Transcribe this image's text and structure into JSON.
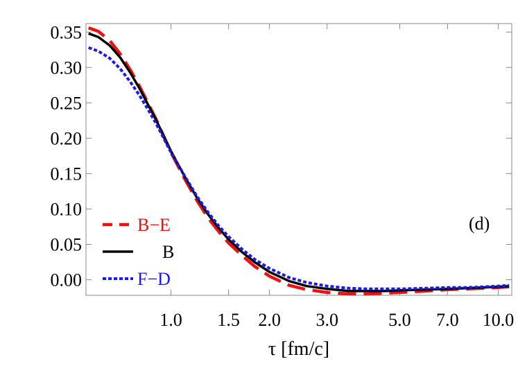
{
  "chart_data": {
    "type": "line",
    "title": "",
    "xlabel": "τ [fm/c]",
    "ylabel": "",
    "x_scale": "log",
    "xlim": [
      0.55,
      11.0
    ],
    "ylim": [
      -0.022,
      0.362
    ],
    "x_ticks": [
      {
        "value": 1.0,
        "label": "1.0"
      },
      {
        "value": 1.5,
        "label": "1.5"
      },
      {
        "value": 2.0,
        "label": "2.0"
      },
      {
        "value": 3.0,
        "label": "3.0"
      },
      {
        "value": 5.0,
        "label": "5.0"
      },
      {
        "value": 7.0,
        "label": "7.0"
      },
      {
        "value": 10.0,
        "label": "10.0"
      }
    ],
    "y_ticks": [
      {
        "value": 0.0,
        "label": "0.00"
      },
      {
        "value": 0.05,
        "label": "0.05"
      },
      {
        "value": 0.1,
        "label": "0.10"
      },
      {
        "value": 0.15,
        "label": "0.15"
      },
      {
        "value": 0.2,
        "label": "0.20"
      },
      {
        "value": 0.25,
        "label": "0.25"
      },
      {
        "value": 0.3,
        "label": "0.30"
      },
      {
        "value": 0.35,
        "label": "0.35"
      }
    ],
    "grid": false,
    "legend_position": "bottom-left",
    "annotation": "(d)",
    "series": [
      {
        "name": "B−E",
        "color": "#ee1111",
        "style": "dashed",
        "x": [
          0.56,
          0.6,
          0.65,
          0.7,
          0.75,
          0.8,
          0.85,
          0.9,
          1.0,
          1.1,
          1.2,
          1.3,
          1.4,
          1.5,
          1.65,
          1.8,
          2.0,
          2.3,
          2.6,
          3.0,
          3.5,
          4.0,
          4.5,
          5.0,
          6.0,
          7.0,
          8.0,
          9.0,
          10.0,
          10.8
        ],
        "values": [
          0.356,
          0.351,
          0.338,
          0.319,
          0.297,
          0.274,
          0.25,
          0.227,
          0.18,
          0.143,
          0.112,
          0.087,
          0.068,
          0.052,
          0.034,
          0.019,
          0.005,
          -0.008,
          -0.014,
          -0.018,
          -0.02,
          -0.02,
          -0.019,
          -0.018,
          -0.016,
          -0.014,
          -0.013,
          -0.012,
          -0.011,
          -0.01
        ]
      },
      {
        "name": "B",
        "color": "#000000",
        "style": "solid",
        "x": [
          0.56,
          0.6,
          0.65,
          0.7,
          0.75,
          0.8,
          0.85,
          0.9,
          1.0,
          1.1,
          1.2,
          1.3,
          1.4,
          1.5,
          1.65,
          1.8,
          2.0,
          2.3,
          2.6,
          3.0,
          3.5,
          4.0,
          4.5,
          5.0,
          6.0,
          7.0,
          8.0,
          9.0,
          10.0,
          10.8
        ],
        "values": [
          0.348,
          0.343,
          0.331,
          0.314,
          0.293,
          0.271,
          0.248,
          0.226,
          0.182,
          0.146,
          0.116,
          0.092,
          0.073,
          0.057,
          0.039,
          0.025,
          0.011,
          -0.002,
          -0.009,
          -0.013,
          -0.016,
          -0.016,
          -0.016,
          -0.015,
          -0.014,
          -0.013,
          -0.012,
          -0.011,
          -0.01,
          -0.009
        ]
      },
      {
        "name": "F−D",
        "color": "#1a1aee",
        "style": "dotted",
        "x": [
          0.56,
          0.6,
          0.65,
          0.7,
          0.75,
          0.8,
          0.85,
          0.9,
          1.0,
          1.1,
          1.2,
          1.3,
          1.4,
          1.5,
          1.65,
          1.8,
          2.0,
          2.3,
          2.6,
          3.0,
          3.5,
          4.0,
          4.5,
          5.0,
          6.0,
          7.0,
          8.0,
          9.0,
          10.0,
          10.8
        ],
        "values": [
          0.328,
          0.323,
          0.313,
          0.298,
          0.28,
          0.261,
          0.241,
          0.221,
          0.18,
          0.147,
          0.118,
          0.095,
          0.076,
          0.061,
          0.043,
          0.029,
          0.016,
          0.003,
          -0.004,
          -0.009,
          -0.012,
          -0.013,
          -0.013,
          -0.013,
          -0.012,
          -0.011,
          -0.011,
          -0.01,
          -0.009,
          -0.008
        ]
      }
    ]
  }
}
